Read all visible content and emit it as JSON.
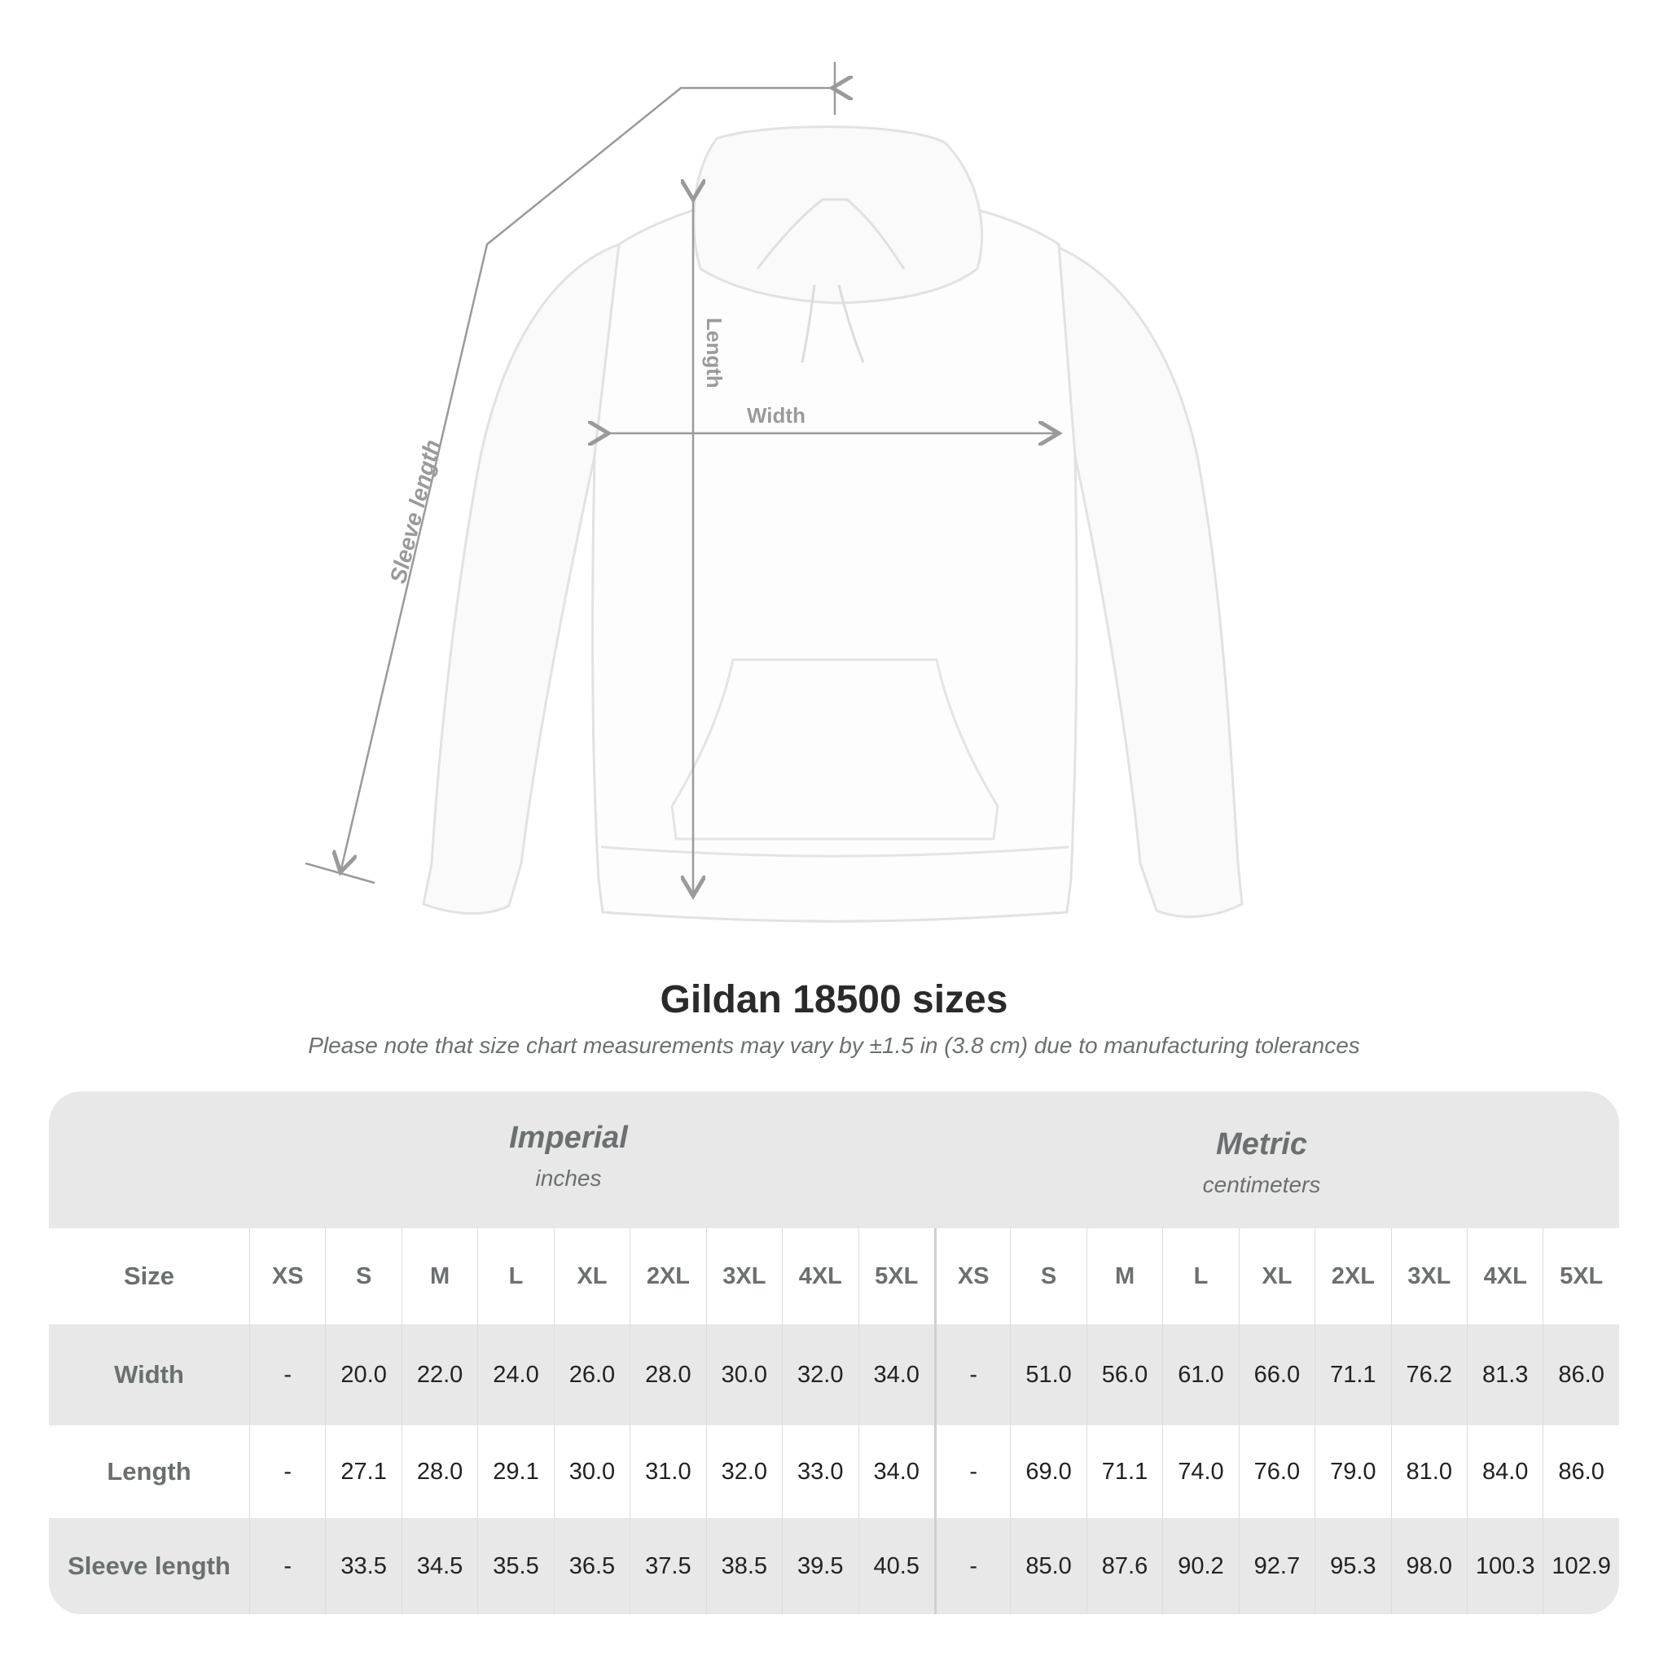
{
  "illustration": {
    "labels": {
      "length": "Length",
      "width": "Width",
      "sleeve": "Sleeve length"
    }
  },
  "title": "Gildan 18500 sizes",
  "subtitle": "Please note that size chart measurements may vary by ±1.5 in (3.8 cm) due to manufacturing tolerances",
  "table": {
    "imperial": {
      "name": "Imperial",
      "unit": "inches"
    },
    "metric": {
      "name": "Metric",
      "unit": "centimeters"
    },
    "size_label": "Size",
    "sizes": [
      "XS",
      "S",
      "M",
      "L",
      "XL",
      "2XL",
      "3XL",
      "4XL",
      "5XL"
    ],
    "rows": [
      {
        "label": "Width",
        "imperial": [
          "-",
          "20.0",
          "22.0",
          "24.0",
          "26.0",
          "28.0",
          "30.0",
          "32.0",
          "34.0"
        ],
        "metric": [
          "-",
          "51.0",
          "56.0",
          "61.0",
          "66.0",
          "71.1",
          "76.2",
          "81.3",
          "86.0"
        ]
      },
      {
        "label": "Length",
        "imperial": [
          "-",
          "27.1",
          "28.0",
          "29.1",
          "30.0",
          "31.0",
          "32.0",
          "33.0",
          "34.0"
        ],
        "metric": [
          "-",
          "69.0",
          "71.1",
          "74.0",
          "76.0",
          "79.0",
          "81.0",
          "84.0",
          "86.0"
        ]
      },
      {
        "label": "Sleeve length",
        "imperial": [
          "-",
          "33.5",
          "34.5",
          "35.5",
          "36.5",
          "37.5",
          "38.5",
          "39.5",
          "40.5"
        ],
        "metric": [
          "-",
          "85.0",
          "87.6",
          "90.2",
          "92.7",
          "95.3",
          "98.0",
          "100.3",
          "102.9"
        ]
      }
    ]
  },
  "colors": {
    "header_bg": "#e8e8e8",
    "label_text": "#6b6f70",
    "value_text": "#222222",
    "measure_line": "#9a9a9a"
  }
}
